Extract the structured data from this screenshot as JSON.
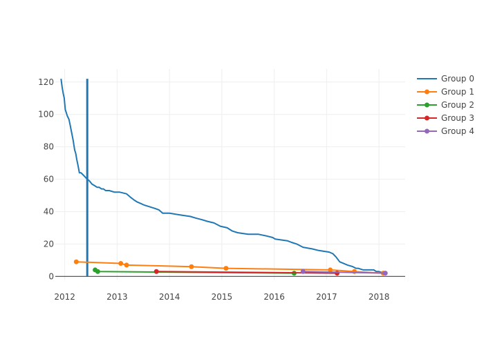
{
  "chart_data": {
    "type": "line",
    "title": "",
    "xlabel": "",
    "ylabel": "",
    "xlim": [
      2011.82,
      2018.5
    ],
    "ylim": [
      -2,
      128
    ],
    "x_ticks": [
      2012,
      2013,
      2014,
      2015,
      2016,
      2017,
      2018
    ],
    "x_tick_labels": [
      "2012",
      "2013",
      "2014",
      "2015",
      "2016",
      "2017",
      "2018"
    ],
    "y_ticks": [
      0,
      20,
      40,
      60,
      80,
      100,
      120
    ],
    "y_tick_labels": [
      "0",
      "20",
      "40",
      "60",
      "80",
      "100",
      "120"
    ],
    "grid": true,
    "legend_position": "right",
    "vertical_marker": {
      "x": 2012.43,
      "y_range": [
        0,
        122
      ],
      "color": "#1f77b4"
    },
    "series": [
      {
        "name": "Group 0",
        "color": "#1f77b4",
        "mode": "lines",
        "x": [
          2011.93,
          2011.95,
          2011.97,
          2011.99,
          2012.01,
          2012.03,
          2012.05,
          2012.08,
          2012.1,
          2012.13,
          2012.16,
          2012.19,
          2012.21,
          2012.23,
          2012.25,
          2012.28,
          2012.31,
          2012.34,
          2012.37,
          2012.4,
          2012.43,
          2012.47,
          2012.52,
          2012.57,
          2012.62,
          2012.66,
          2012.7,
          2012.74,
          2012.78,
          2012.85,
          2012.95,
          2013.05,
          2013.18,
          2013.25,
          2013.33,
          2013.38,
          2013.45,
          2013.52,
          2013.62,
          2013.72,
          2013.8,
          2013.87,
          2014.0,
          2014.2,
          2014.4,
          2014.5,
          2014.62,
          2014.72,
          2014.85,
          2014.97,
          2015.1,
          2015.2,
          2015.3,
          2015.5,
          2015.7,
          2015.85,
          2015.97,
          2016.02,
          2016.25,
          2016.33,
          2016.43,
          2016.55,
          2016.72,
          2016.85,
          2017.05,
          2017.12,
          2017.18,
          2017.25,
          2017.4,
          2017.5,
          2017.56,
          2017.6,
          2017.7,
          2017.9,
          2017.95,
          2018.0,
          2018.1
        ],
        "y": [
          122,
          117,
          113,
          110,
          103,
          101,
          99,
          97,
          94,
          89,
          84,
          78,
          76,
          72,
          69,
          64,
          64,
          63,
          62,
          61,
          60,
          59,
          57,
          56,
          55,
          55,
          54,
          54,
          53,
          53,
          52,
          52,
          51,
          49,
          47,
          46,
          45,
          44,
          43,
          42,
          41,
          39,
          39,
          38,
          37,
          36,
          35,
          34,
          33,
          31,
          30,
          28,
          27,
          26,
          26,
          25,
          24,
          23,
          22,
          21,
          20,
          18,
          17,
          16,
          15,
          14,
          12,
          9,
          7,
          6,
          5,
          5,
          4,
          4,
          3,
          3,
          2
        ]
      },
      {
        "name": "Group 1",
        "color": "#ff7f0e",
        "mode": "lines+markers",
        "x": [
          2012.22,
          2013.07,
          2013.18,
          2014.42,
          2015.08,
          2017.07,
          2017.53,
          2018.08
        ],
        "y": [
          9,
          8,
          7,
          6,
          5,
          4,
          3,
          2
        ]
      },
      {
        "name": "Group 2",
        "color": "#2ca02c",
        "mode": "lines+markers",
        "x": [
          2012.58,
          2012.63,
          2016.38
        ],
        "y": [
          4,
          3,
          2
        ]
      },
      {
        "name": "Group 3",
        "color": "#d62728",
        "mode": "lines+markers",
        "x": [
          2013.75,
          2017.2
        ],
        "y": [
          3,
          2
        ]
      },
      {
        "name": "Group 4",
        "color": "#9467bd",
        "mode": "lines+markers",
        "x": [
          2016.55,
          2018.12
        ],
        "y": [
          3,
          2
        ]
      }
    ]
  }
}
